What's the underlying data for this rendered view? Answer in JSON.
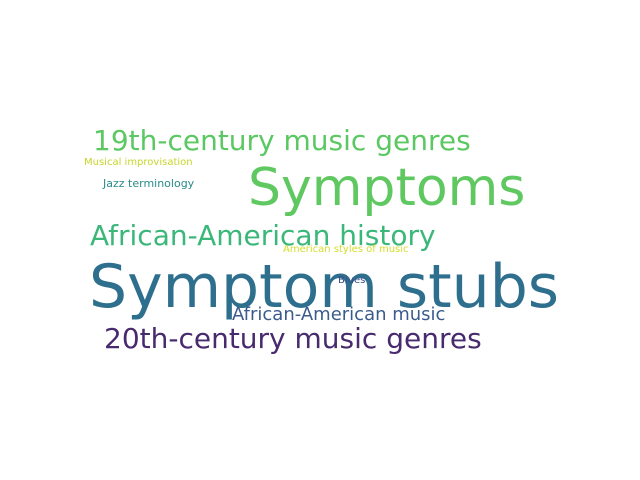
{
  "words": [
    {
      "text": "19th-century music genres",
      "color": "#5cc863"
    },
    {
      "text": "Musical improvisation",
      "color": "#c8d52a"
    },
    {
      "text": "Symptoms",
      "color": "#60c861"
    },
    {
      "text": "Jazz terminology",
      "color": "#2a8a8a"
    },
    {
      "text": "African-American history",
      "color": "#3bb77a"
    },
    {
      "text": "American styles of music",
      "color": "#d5dd2a"
    },
    {
      "text": "Symptom stubs",
      "color": "#2e6f8e"
    },
    {
      "text": "Blues",
      "color": "#3a4f88"
    },
    {
      "text": "African-American music",
      "color": "#3b5b8c"
    },
    {
      "text": "20th-century music genres",
      "color": "#482a6e"
    }
  ]
}
